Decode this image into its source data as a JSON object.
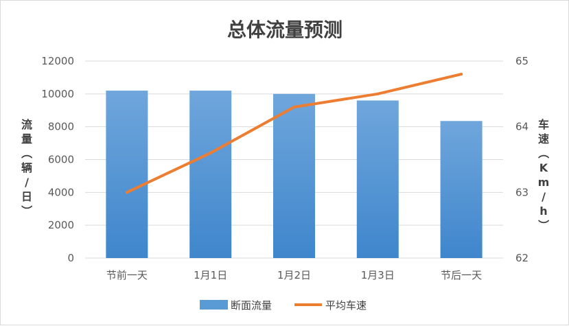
{
  "chart_data": {
    "type": "bar+line",
    "title": "总体流量预测",
    "categories": [
      "节前一天",
      "1月1日",
      "1月2日",
      "1月3日",
      "节后一天"
    ],
    "ylabel_left": "流量（辆/日）",
    "ylabel_right": "车速（Km/h）",
    "ylim_left": [
      0,
      12000
    ],
    "yticks_left": [
      0,
      2000,
      4000,
      6000,
      8000,
      10000,
      12000
    ],
    "ylim_right": [
      62,
      65
    ],
    "yticks_right": [
      62,
      63,
      64,
      65
    ],
    "grid": true,
    "legend_position": "bottom",
    "series": [
      {
        "name": "断面流量",
        "type": "bar",
        "axis": "left",
        "values": [
          10200,
          10200,
          10000,
          9600,
          8350
        ],
        "color": "#5b9bd5"
      },
      {
        "name": "平均车速",
        "type": "line",
        "axis": "right",
        "values": [
          63.0,
          63.6,
          64.3,
          64.5,
          64.8
        ],
        "color": "#ed7d31"
      }
    ]
  }
}
